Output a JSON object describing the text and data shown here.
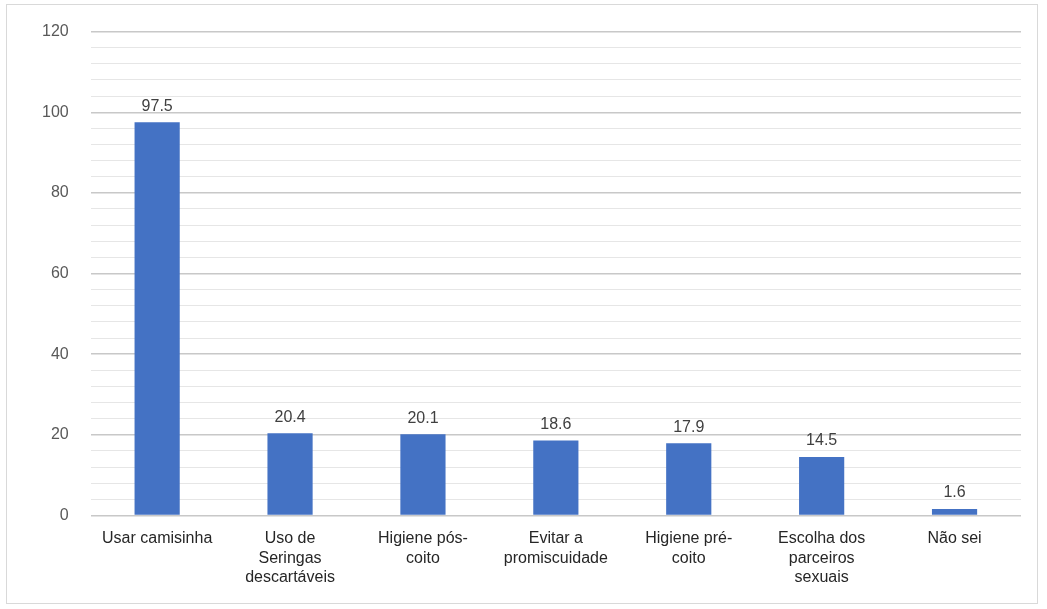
{
  "chart_data": {
    "type": "bar",
    "categories": [
      "Usar camisinha",
      "Uso de Seringas descartáveis",
      "Higiene pós-coito",
      "Evitar a promiscuidade",
      "Higiene pré-coito",
      "Escolha dos parceiros sexuais",
      "Não sei"
    ],
    "values": [
      97.5,
      20.4,
      20.1,
      18.6,
      17.9,
      14.5,
      1.6
    ],
    "color": "#4472c4",
    "ylim": [
      0,
      120
    ],
    "yticks": [
      0,
      {
        "value": 4,
        "label": null
      },
      {
        "value": 8,
        "label": null
      },
      {
        "value": 12,
        "label": null
      },
      {
        "value": 16,
        "label": null
      },
      20,
      {
        "value": 24,
        "label": null
      },
      {
        "value": 28,
        "label": null
      },
      {
        "value": 32,
        "label": null
      },
      {
        "value": 36,
        "label": null
      },
      40,
      {
        "value": 44,
        "label": null
      },
      {
        "value": 48,
        "label": null
      },
      {
        "value": 52,
        "label": null
      },
      {
        "value": 56,
        "label": null
      },
      60,
      {
        "value": 64,
        "label": null
      },
      {
        "value": 68,
        "label": null
      },
      {
        "value": 72,
        "label": null
      },
      {
        "value": 76,
        "label": null
      },
      80,
      {
        "value": 84,
        "label": null
      },
      {
        "value": 88,
        "label": null
      },
      {
        "value": 92,
        "label": null
      },
      {
        "value": 96,
        "label": null
      },
      100,
      {
        "value": 104,
        "label": null
      },
      {
        "value": 108,
        "label": null
      },
      {
        "value": 112,
        "label": null
      },
      {
        "value": 116,
        "label": null
      },
      120
    ],
    "grid": "y",
    "data_labels": true,
    "legend": false
  }
}
